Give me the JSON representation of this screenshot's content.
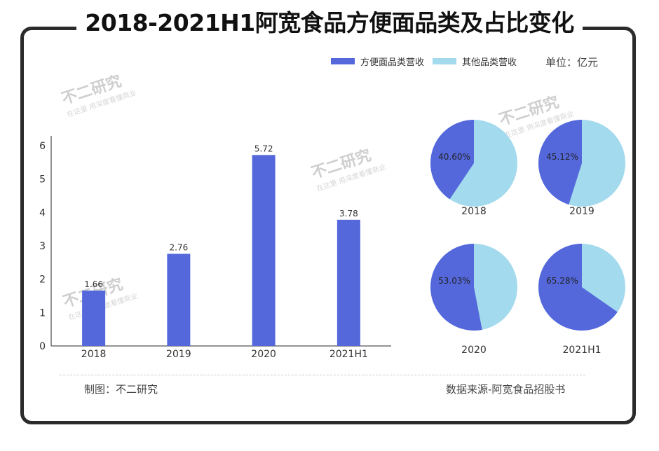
{
  "title": "2018-2021H1阿宽食品方便面品类及占比变化",
  "legend": {
    "series1": "方便面品类营收",
    "series2": "其他品类营收",
    "color1": "#5468dc",
    "color2": "#a3daed"
  },
  "unit": "单位：亿元",
  "watermark": {
    "main": "不二研究",
    "sub": "在这里 用深度看懂商业"
  },
  "footer": {
    "left": "制图：不二研究",
    "right": "数据来源-阿宽食品招股书"
  },
  "chart_data": [
    {
      "type": "bar",
      "categories": [
        "2018",
        "2019",
        "2020",
        "2021H1"
      ],
      "values": [
        1.66,
        2.76,
        5.72,
        3.78
      ],
      "ylim": [
        0,
        6
      ],
      "yticks": [
        0,
        1,
        2,
        3,
        4,
        5,
        6
      ],
      "series": [
        {
          "name": "方便面品类营收",
          "values": [
            1.66,
            2.76,
            5.72,
            3.78
          ]
        }
      ]
    },
    {
      "type": "pie",
      "pies": [
        {
          "label": "2018",
          "value_pct": 40.6,
          "display": "40.60%"
        },
        {
          "label": "2019",
          "value_pct": 45.12,
          "display": "45.12%"
        },
        {
          "label": "2020",
          "value_pct": 53.03,
          "display": "53.03%"
        },
        {
          "label": "2021H1",
          "value_pct": 65.28,
          "display": "65.28%"
        }
      ]
    }
  ]
}
